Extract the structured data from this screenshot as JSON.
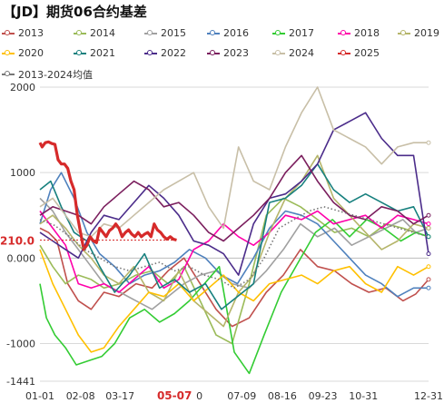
{
  "title": "【JD】期货06合约基差",
  "chart_data": {
    "type": "line",
    "title": "【JD】期货06合约基差",
    "ylim": [
      -1441,
      2000
    ],
    "yticks": [
      "2000",
      "1000",
      "0.000",
      "-1000",
      "-1441"
    ],
    "ytick_values": [
      2000,
      1000,
      0,
      -1000,
      -1441
    ],
    "xticks": [
      "01-01",
      "02-08",
      "03-17",
      "05-07",
      "07-09",
      "08-16",
      "09-23",
      "10-31",
      "12-31"
    ],
    "xtick_days": [
      0,
      38,
      75,
      126,
      189,
      227,
      265,
      303,
      364
    ],
    "highlight_xtick": "05-07",
    "highlight_xtick_prefix": "0",
    "current_label": "210.0",
    "current_value": 210,
    "zero_line": 0,
    "grid": true,
    "legend_position": "top",
    "series": [
      {
        "name": "2013",
        "color": "#c0504d",
        "days": [
          0,
          8,
          16,
          26,
          36,
          48,
          60,
          74,
          90,
          105,
          120,
          135,
          150,
          165,
          180,
          196,
          212,
          228,
          244,
          260,
          276,
          292,
          308,
          324,
          340,
          352,
          364
        ],
        "values": [
          350,
          300,
          200,
          -300,
          -500,
          -600,
          -400,
          -450,
          -300,
          -350,
          -150,
          0,
          -300,
          -600,
          -800,
          -700,
          -400,
          -200,
          100,
          -100,
          -150,
          -300,
          -400,
          -350,
          -500,
          -420,
          -250
        ]
      },
      {
        "name": "2014",
        "color": "#9bbb59",
        "days": [
          0,
          12,
          24,
          36,
          48,
          60,
          75,
          90,
          105,
          120,
          135,
          150,
          165,
          180,
          196,
          212,
          228,
          244,
          260,
          276,
          292,
          308,
          324,
          340,
          352,
          364
        ],
        "values": [
          150,
          -100,
          -300,
          -200,
          -250,
          -350,
          -300,
          -200,
          -150,
          -300,
          -100,
          -500,
          -900,
          -1000,
          -300,
          500,
          700,
          600,
          450,
          300,
          350,
          250,
          400,
          350,
          300,
          250
        ]
      },
      {
        "name": "2015",
        "color": "#a0a0a0",
        "days": [
          0,
          12,
          24,
          36,
          48,
          60,
          75,
          90,
          105,
          120,
          135,
          150,
          165,
          180,
          196,
          212,
          228,
          244,
          260,
          276,
          292,
          308,
          324,
          340,
          352,
          364
        ],
        "values": [
          700,
          550,
          300,
          100,
          -100,
          -300,
          -400,
          -500,
          -600,
          -450,
          -300,
          -200,
          -150,
          -300,
          -350,
          -150,
          100,
          400,
          250,
          350,
          150,
          250,
          350,
          450,
          300,
          350
        ]
      },
      {
        "name": "2016",
        "color": "#4f81bd",
        "days": [
          0,
          10,
          20,
          32,
          44,
          56,
          70,
          84,
          98,
          112,
          126,
          140,
          155,
          170,
          185,
          200,
          215,
          230,
          245,
          260,
          275,
          290,
          305,
          320,
          335,
          350,
          364
        ],
        "values": [
          400,
          800,
          1000,
          700,
          300,
          50,
          -100,
          -300,
          -200,
          -150,
          -50,
          100,
          0,
          -200,
          -300,
          0,
          350,
          550,
          500,
          400,
          200,
          0,
          -200,
          -300,
          -450,
          -350,
          -350
        ]
      },
      {
        "name": "2017",
        "color": "#33cc33",
        "days": [
          0,
          6,
          14,
          24,
          34,
          46,
          58,
          70,
          84,
          98,
          112,
          126,
          140,
          154,
          168,
          182,
          196,
          210,
          226,
          242,
          258,
          274,
          290,
          306,
          322,
          338,
          352,
          364
        ],
        "values": [
          -300,
          -700,
          -900,
          -1050,
          -1250,
          -1200,
          -1150,
          -1000,
          -700,
          -600,
          -750,
          -650,
          -500,
          -300,
          -100,
          -1100,
          -1350,
          -900,
          -400,
          -50,
          300,
          450,
          250,
          450,
          350,
          200,
          300,
          250
        ]
      },
      {
        "name": "2018",
        "color": "#ff00aa",
        "days": [
          0,
          12,
          24,
          36,
          48,
          60,
          74,
          88,
          102,
          116,
          130,
          144,
          158,
          172,
          186,
          200,
          215,
          230,
          245,
          260,
          275,
          290,
          305,
          320,
          335,
          350,
          364
        ],
        "values": [
          550,
          350,
          150,
          -300,
          -350,
          -300,
          -400,
          -250,
          -100,
          -350,
          -250,
          100,
          200,
          400,
          250,
          150,
          300,
          500,
          450,
          550,
          400,
          450,
          500,
          350,
          500,
          450,
          400
        ]
      },
      {
        "name": "2019",
        "color": "#b5b56a",
        "days": [
          0,
          12,
          24,
          36,
          48,
          60,
          74,
          88,
          102,
          116,
          130,
          144,
          158,
          172,
          186,
          200,
          215,
          230,
          245,
          260,
          275,
          290,
          305,
          320,
          335,
          350,
          364
        ],
        "values": [
          400,
          500,
          350,
          150,
          0,
          -200,
          -300,
          -100,
          -400,
          -500,
          -150,
          -500,
          -650,
          -800,
          -400,
          -200,
          300,
          700,
          900,
          1200,
          700,
          500,
          300,
          100,
          200,
          400,
          350
        ]
      },
      {
        "name": "2020",
        "color": "#ffc000",
        "days": [
          0,
          12,
          24,
          36,
          48,
          60,
          74,
          88,
          102,
          116,
          130,
          144,
          158,
          172,
          186,
          200,
          215,
          230,
          245,
          260,
          275,
          290,
          305,
          320,
          335,
          350,
          364
        ],
        "values": [
          100,
          -300,
          -600,
          -900,
          -1100,
          -1050,
          -800,
          -600,
          -400,
          -450,
          -300,
          -500,
          -350,
          -200,
          -400,
          -500,
          -300,
          -250,
          -200,
          -300,
          -150,
          -100,
          -300,
          -400,
          -100,
          -200,
          -100
        ]
      },
      {
        "name": "2021",
        "color": "#17807e",
        "days": [
          0,
          10,
          20,
          32,
          44,
          56,
          70,
          84,
          98,
          112,
          126,
          140,
          155,
          170,
          185,
          200,
          215,
          230,
          245,
          260,
          275,
          290,
          305,
          320,
          335,
          350,
          364
        ],
        "values": [
          800,
          900,
          600,
          300,
          200,
          -100,
          -400,
          -200,
          50,
          -350,
          -250,
          -400,
          -300,
          -600,
          -450,
          -300,
          650,
          700,
          850,
          1100,
          800,
          650,
          750,
          650,
          550,
          600,
          250
        ]
      },
      {
        "name": "2022",
        "color": "#4b2c8a",
        "days": [
          0,
          12,
          24,
          36,
          48,
          60,
          74,
          88,
          102,
          116,
          130,
          144,
          158,
          172,
          186,
          200,
          215,
          230,
          245,
          260,
          275,
          290,
          305,
          320,
          335,
          350,
          364
        ],
        "values": [
          300,
          200,
          100,
          0,
          300,
          500,
          450,
          650,
          850,
          700,
          500,
          200,
          150,
          50,
          -200,
          400,
          700,
          750,
          900,
          1100,
          1500,
          1600,
          1700,
          1400,
          1200,
          1200,
          50
        ]
      },
      {
        "name": "2023",
        "color": "#7b1f5e",
        "days": [
          0,
          12,
          24,
          36,
          48,
          60,
          74,
          88,
          102,
          116,
          130,
          144,
          158,
          172,
          186,
          200,
          215,
          230,
          245,
          260,
          275,
          290,
          305,
          320,
          335,
          350,
          364
        ],
        "values": [
          500,
          600,
          550,
          500,
          400,
          600,
          750,
          900,
          800,
          600,
          650,
          500,
          300,
          200,
          350,
          500,
          700,
          1000,
          1200,
          900,
          650,
          500,
          450,
          600,
          550,
          400,
          500
        ]
      },
      {
        "name": "2024",
        "color": "#c8bfa7",
        "days": [
          0,
          12,
          24,
          36,
          48,
          60,
          74,
          88,
          102,
          116,
          130,
          144,
          158,
          172,
          186,
          200,
          215,
          230,
          245,
          260,
          275,
          290,
          305,
          320,
          335,
          350,
          364
        ],
        "values": [
          600,
          700,
          500,
          300,
          250,
          400,
          350,
          500,
          650,
          800,
          900,
          1000,
          600,
          350,
          1300,
          900,
          800,
          1300,
          1700,
          2000,
          1500,
          1400,
          1300,
          1100,
          1300,
          1350,
          1350
        ]
      },
      {
        "name": "2025",
        "color": "#d62a2a",
        "days": [
          0,
          2,
          5,
          8,
          11,
          14,
          17,
          20,
          23,
          26,
          29,
          32,
          35,
          38,
          41,
          44,
          47,
          50,
          53,
          56,
          59,
          62,
          65,
          68,
          71,
          74,
          77,
          80,
          83,
          86,
          89,
          92,
          95,
          98,
          101,
          104,
          107,
          110,
          113,
          116,
          119,
          122,
          125,
          128
        ],
        "values": [
          1350,
          1300,
          1350,
          1360,
          1340,
          1330,
          1150,
          1100,
          1100,
          1050,
          900,
          800,
          500,
          300,
          100,
          150,
          250,
          200,
          180,
          350,
          300,
          250,
          320,
          350,
          400,
          350,
          250,
          300,
          330,
          280,
          250,
          300,
          250,
          280,
          300,
          250,
          400,
          330,
          300,
          250,
          220,
          250,
          220,
          210
        ]
      },
      {
        "name": "2013-2024均值",
        "color": "#777777",
        "dotted": true,
        "days": [
          0,
          14,
          28,
          42,
          56,
          70,
          84,
          98,
          112,
          126,
          140,
          154,
          168,
          182,
          196,
          210,
          224,
          238,
          252,
          266,
          280,
          294,
          308,
          322,
          336,
          350,
          364
        ],
        "values": [
          450,
          380,
          250,
          100,
          0,
          -100,
          -150,
          -100,
          -50,
          -150,
          -100,
          -200,
          -250,
          -350,
          -250,
          0,
          350,
          450,
          550,
          600,
          550,
          500,
          450,
          400,
          350,
          300,
          250
        ]
      }
    ]
  }
}
